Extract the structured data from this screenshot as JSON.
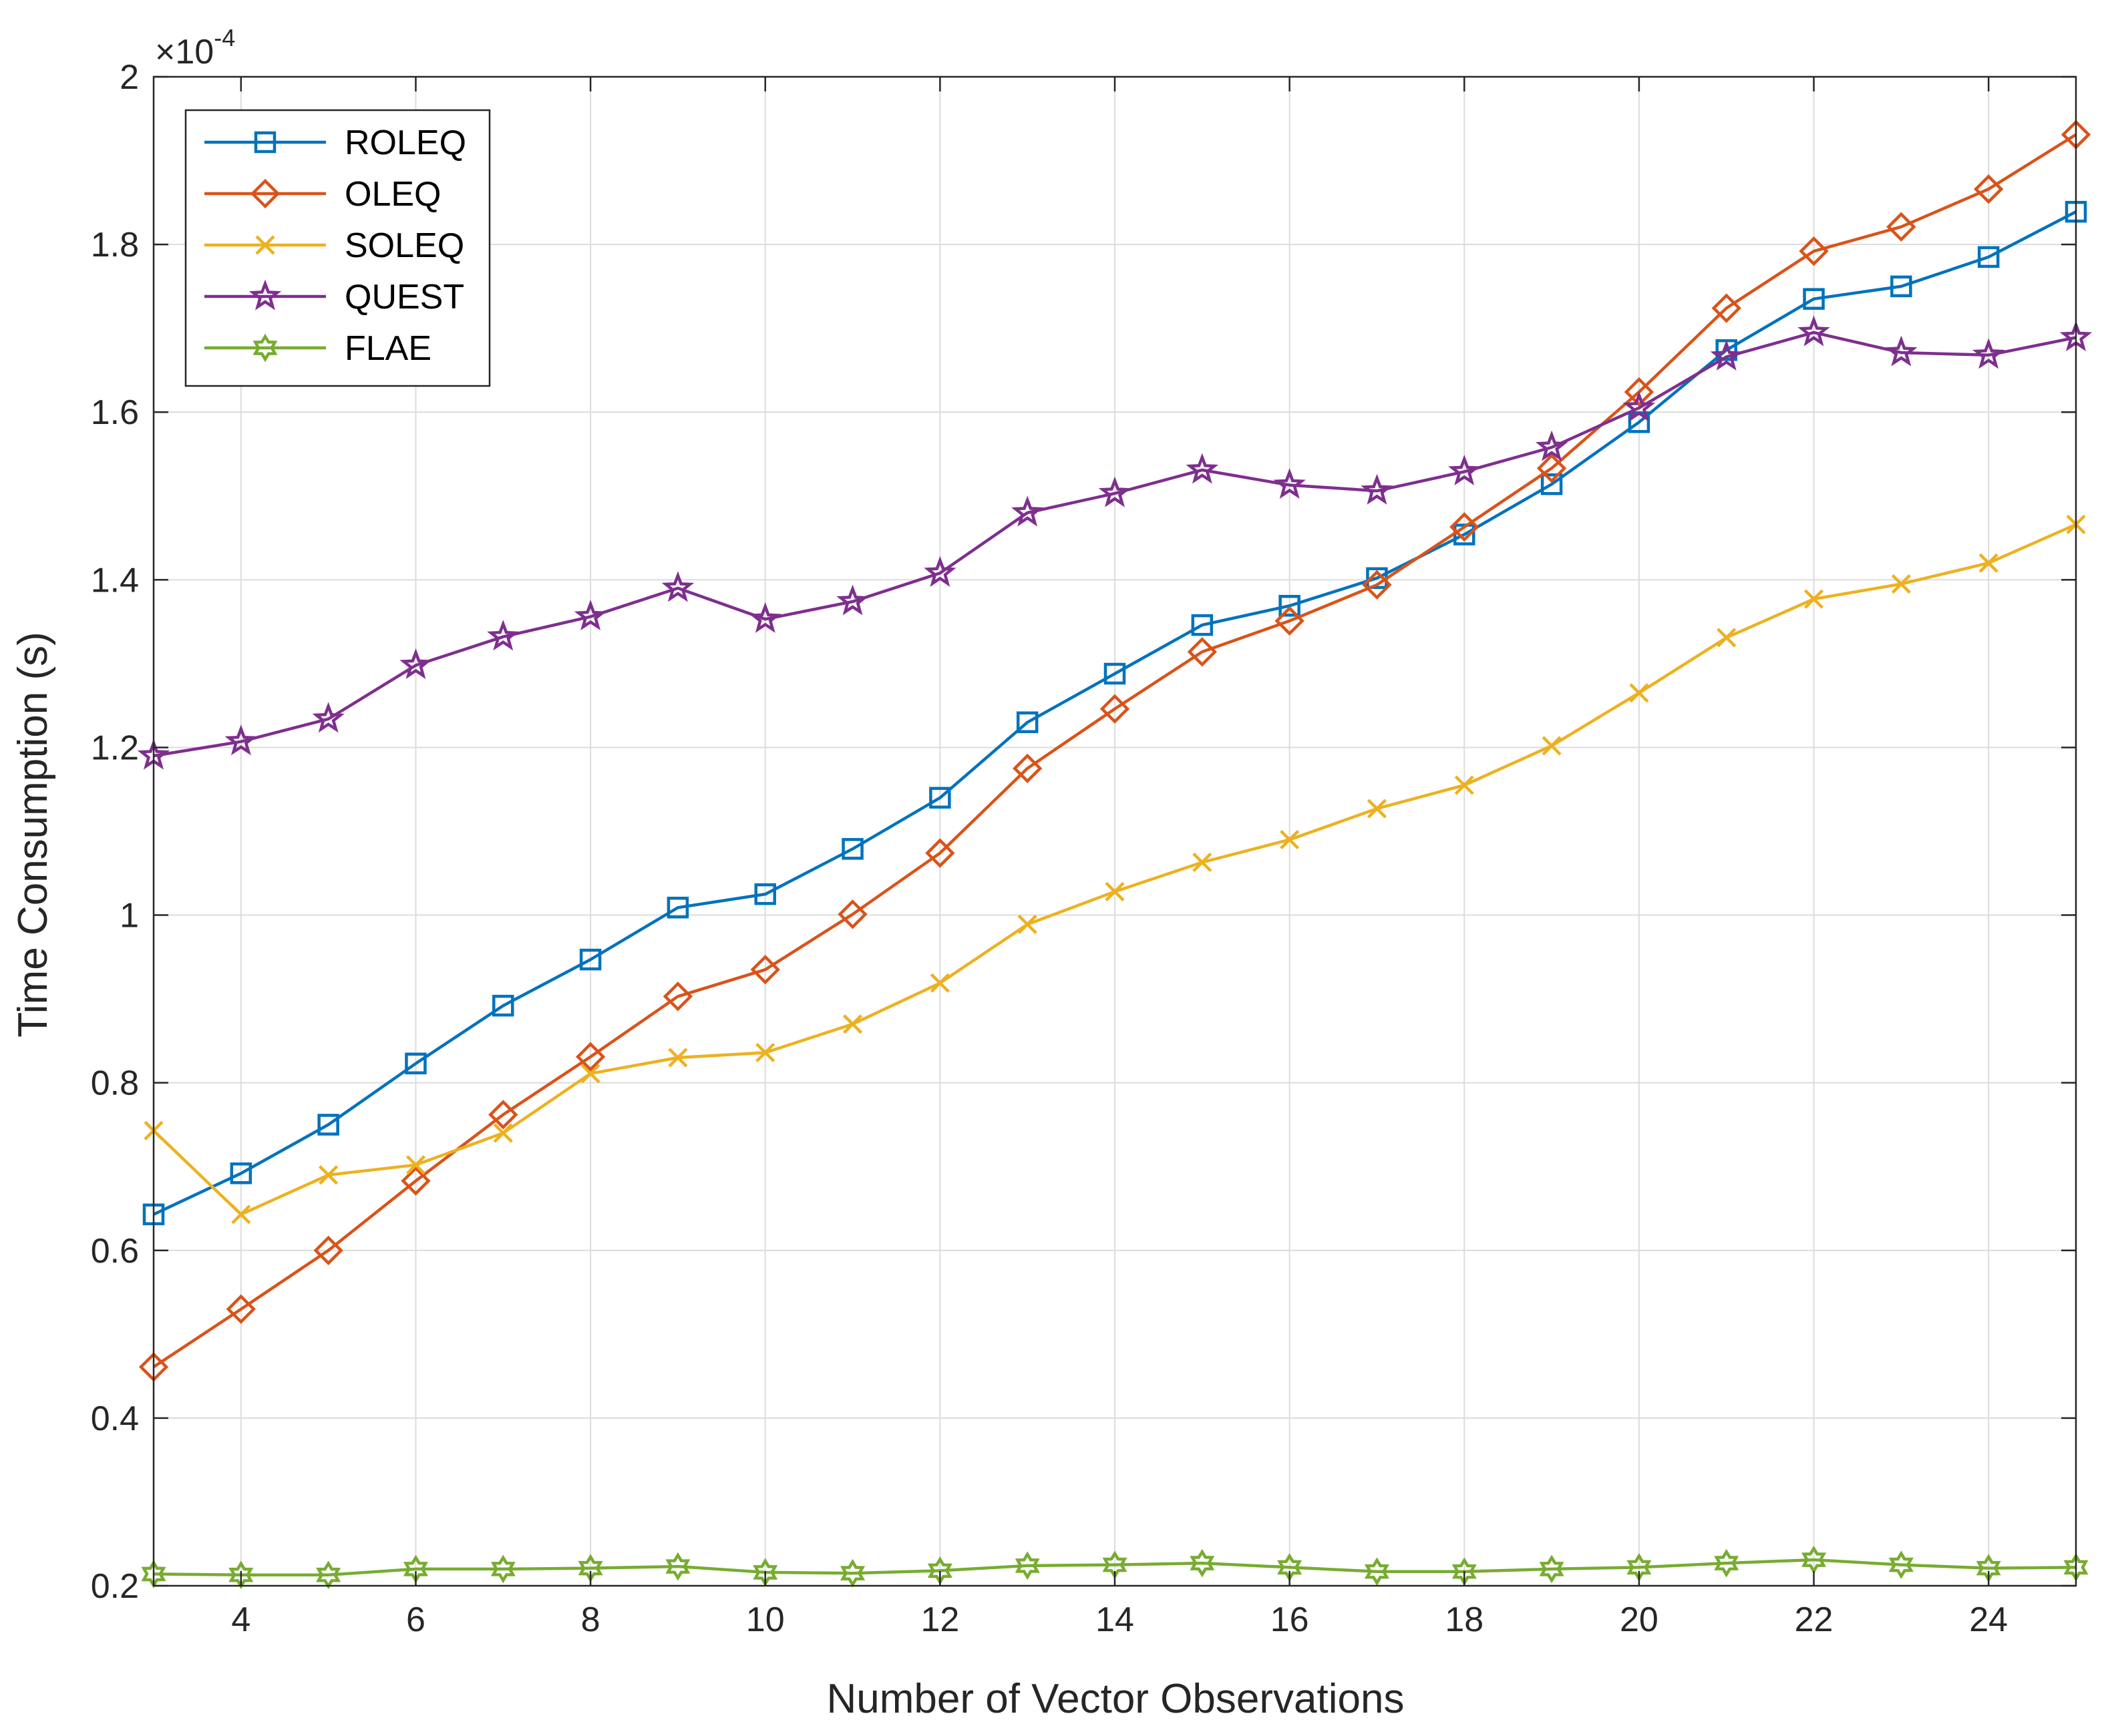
{
  "chart_data": {
    "type": "line",
    "xlabel": "Number of Vector Observations",
    "ylabel": "Time Consumption (s)",
    "exponent_base": "×10",
    "exponent_power": "-4",
    "xlim": [
      3,
      25
    ],
    "ylim": [
      0.2,
      2.0
    ],
    "xticks": [
      4,
      6,
      8,
      10,
      12,
      14,
      16,
      18,
      20,
      22,
      24
    ],
    "yticks": [
      0.2,
      0.4,
      0.6,
      0.8,
      1.0,
      1.2,
      1.4,
      1.6,
      1.8,
      2.0
    ],
    "ytick_labels": [
      "0.2",
      "0.4",
      "0.6",
      "0.8",
      "1",
      "1.2",
      "1.4",
      "1.6",
      "1.8",
      "2"
    ],
    "grid": true,
    "legend_position": "top-left",
    "x": [
      3,
      4,
      5,
      6,
      7,
      8,
      9,
      10,
      11,
      12,
      13,
      14,
      15,
      16,
      17,
      18,
      19,
      20,
      21,
      22,
      23,
      24,
      25
    ],
    "series": [
      {
        "name": "ROLEQ",
        "color": "#0072BD",
        "marker": "square",
        "values": [
          0.643,
          0.692,
          0.75,
          0.823,
          0.892,
          0.947,
          1.009,
          1.025,
          1.079,
          1.14,
          1.23,
          1.288,
          1.346,
          1.369,
          1.402,
          1.454,
          1.514,
          1.588,
          1.674,
          1.735,
          1.75,
          1.785,
          1.839
        ]
      },
      {
        "name": "OLEQ",
        "color": "#D95319",
        "marker": "diamond",
        "values": [
          0.461,
          0.53,
          0.6,
          0.683,
          0.762,
          0.831,
          0.903,
          0.935,
          1.001,
          1.074,
          1.175,
          1.246,
          1.314,
          1.351,
          1.394,
          1.463,
          1.533,
          1.624,
          1.724,
          1.792,
          1.821,
          1.866,
          1.931
        ]
      },
      {
        "name": "SOLEQ",
        "color": "#EDB120",
        "marker": "x",
        "values": [
          0.743,
          0.643,
          0.69,
          0.702,
          0.74,
          0.811,
          0.83,
          0.836,
          0.87,
          0.919,
          0.989,
          1.028,
          1.063,
          1.09,
          1.127,
          1.155,
          1.202,
          1.265,
          1.331,
          1.377,
          1.395,
          1.42,
          1.466
        ]
      },
      {
        "name": "QUEST",
        "color": "#7E2F8E",
        "marker": "pentagram",
        "values": [
          1.19,
          1.207,
          1.234,
          1.298,
          1.332,
          1.356,
          1.39,
          1.353,
          1.374,
          1.408,
          1.48,
          1.503,
          1.531,
          1.513,
          1.506,
          1.529,
          1.558,
          1.605,
          1.666,
          1.695,
          1.671,
          1.668,
          1.689
        ]
      },
      {
        "name": "FLAE",
        "color": "#77AC30",
        "marker": "hexagram",
        "values": [
          0.214,
          0.213,
          0.213,
          0.22,
          0.22,
          0.221,
          0.223,
          0.216,
          0.215,
          0.218,
          0.224,
          0.225,
          0.227,
          0.222,
          0.217,
          0.217,
          0.22,
          0.222,
          0.227,
          0.231,
          0.225,
          0.221,
          0.222
        ]
      }
    ]
  }
}
